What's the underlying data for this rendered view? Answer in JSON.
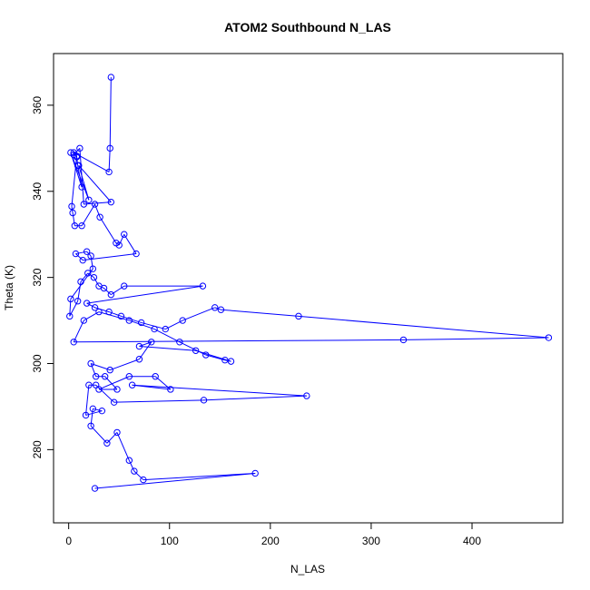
{
  "chart_data": {
    "type": "line",
    "title": "ATOM2 Southbound N_LAS",
    "xlabel": "N_LAS",
    "ylabel": "Theta (K)",
    "xlim": [
      -15,
      490
    ],
    "ylim": [
      263,
      372
    ],
    "x_ticks": [
      0,
      100,
      200,
      300,
      400
    ],
    "y_ticks": [
      280,
      300,
      320,
      340,
      360
    ],
    "grid": false,
    "legend": "none",
    "color": "#0000ff",
    "markers": "open-circle",
    "series": [
      {
        "points": [
          [
            42,
            366.5
          ],
          [
            41,
            350
          ],
          [
            40,
            344.5
          ],
          [
            5,
            349
          ],
          [
            8,
            348
          ],
          [
            9,
            346
          ],
          [
            13,
            341
          ],
          [
            2,
            349
          ],
          [
            20,
            338
          ],
          [
            10,
            346
          ],
          [
            42,
            337.5
          ],
          [
            15,
            337
          ],
          [
            11,
            350
          ],
          [
            5,
            348.5
          ],
          [
            8,
            348.2
          ],
          [
            3,
            336.5
          ],
          [
            4,
            335
          ],
          [
            6,
            332
          ],
          [
            13,
            332
          ],
          [
            26,
            337
          ],
          [
            31,
            334
          ],
          [
            47,
            328
          ],
          [
            50,
            327.5
          ],
          [
            55,
            330
          ],
          [
            67,
            325.5
          ],
          [
            14,
            324
          ],
          [
            7,
            325.5
          ],
          [
            18,
            326
          ],
          [
            22,
            325
          ],
          [
            24,
            322
          ],
          [
            2,
            315
          ],
          [
            1,
            311
          ],
          [
            9,
            314.5
          ],
          [
            12,
            319
          ],
          [
            19,
            321
          ],
          [
            25,
            320
          ],
          [
            30,
            318
          ],
          [
            35,
            317.5
          ],
          [
            42,
            316
          ],
          [
            55,
            318
          ],
          [
            133,
            318
          ],
          [
            18,
            314
          ],
          [
            26,
            313
          ],
          [
            40,
            312
          ],
          [
            52,
            311
          ],
          [
            72,
            309.5
          ],
          [
            96,
            308
          ],
          [
            113,
            310
          ],
          [
            145,
            313
          ],
          [
            151,
            312.5
          ],
          [
            228,
            311
          ],
          [
            476,
            306
          ],
          [
            332,
            305.5
          ],
          [
            5,
            305
          ],
          [
            15,
            310
          ],
          [
            30,
            312
          ],
          [
            60,
            310
          ],
          [
            85,
            308
          ],
          [
            110,
            305
          ],
          [
            136,
            302
          ],
          [
            155,
            300.8
          ],
          [
            161,
            300.5
          ],
          [
            126,
            303
          ],
          [
            70,
            304
          ],
          [
            82,
            305
          ],
          [
            70,
            301
          ],
          [
            41,
            298.5
          ],
          [
            22,
            300
          ],
          [
            27,
            297
          ],
          [
            36,
            297
          ],
          [
            48,
            294
          ],
          [
            30,
            294
          ],
          [
            60,
            297
          ],
          [
            86,
            297
          ],
          [
            101,
            294
          ],
          [
            63,
            295
          ],
          [
            236,
            292.5
          ],
          [
            134,
            291.5
          ],
          [
            45,
            291
          ],
          [
            27,
            295
          ],
          [
            20,
            295
          ],
          [
            17,
            288
          ],
          [
            33,
            289
          ],
          [
            24,
            289.5
          ],
          [
            22,
            285.5
          ],
          [
            38,
            281.5
          ],
          [
            48,
            284
          ],
          [
            60,
            277.5
          ],
          [
            65,
            275
          ],
          [
            74,
            273
          ],
          [
            185,
            274.5
          ],
          [
            26,
            271
          ]
        ]
      }
    ]
  }
}
